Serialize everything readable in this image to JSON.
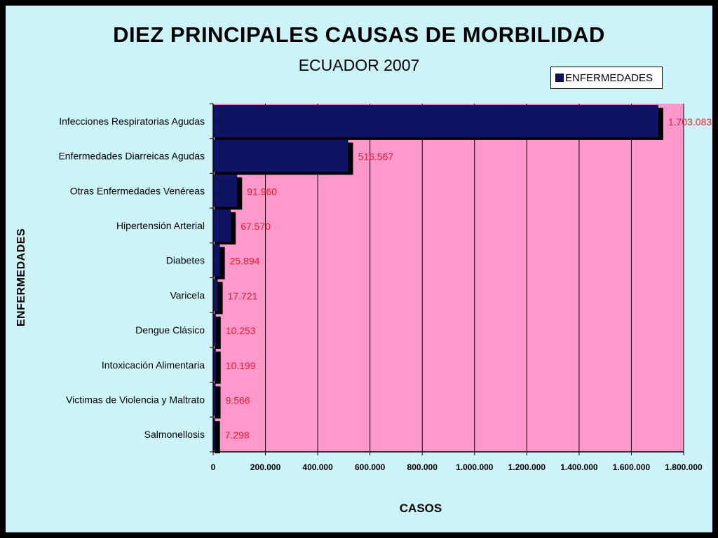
{
  "chart_data": {
    "type": "bar",
    "orientation": "horizontal",
    "title": "DIEZ PRINCIPALES CAUSAS DE MORBILIDAD",
    "subtitle": "ECUADOR 2007",
    "xlabel": "CASOS",
    "ylabel": "ENFERMEDADES",
    "legend": {
      "position": "top-right",
      "entries": [
        "ENFERMEDADES"
      ]
    },
    "categories": [
      "Infecciones Respiratorias Agudas",
      "Enfermedades Diarreicas Agudas",
      "Otras Enfermedades Venéreas",
      "Hipertensión Arterial",
      "Diabetes",
      "Varicela",
      "Dengue Clásico",
      "Intoxicación Alimentaria",
      "Victimas de Violencia y Maltrato",
      "Salmonellosis"
    ],
    "series": [
      {
        "name": "ENFERMEDADES",
        "values": [
          1703083,
          516567,
          91960,
          67570,
          25894,
          17721,
          10253,
          10199,
          9566,
          7298
        ],
        "labels": [
          "1.703.083",
          "516.567",
          "91.960",
          "67.570",
          "25.894",
          "17.721",
          "10.253",
          "10.199",
          "9.566",
          "7.298"
        ]
      }
    ],
    "xlim": [
      0,
      1800000
    ],
    "xticks": [
      0,
      200000,
      400000,
      600000,
      800000,
      1000000,
      1200000,
      1400000,
      1600000,
      1800000
    ],
    "xtick_labels": [
      "0",
      "200.000",
      "400.000",
      "600.000",
      "800.000",
      "1.000.000",
      "1.200.000",
      "1.400.000",
      "1.600.000",
      "1.800.000"
    ],
    "grid": {
      "vertical": true,
      "horizontal": false
    },
    "colors": {
      "bar": "#0e1363",
      "plot_background": "#ff99cc",
      "page_background": "#ccf4f8",
      "data_label": "#ee1c2e"
    }
  }
}
